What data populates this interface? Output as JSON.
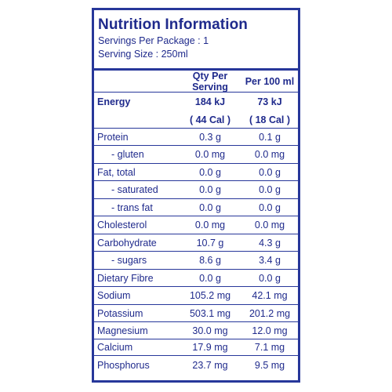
{
  "panel": {
    "title": "Nutrition Information",
    "servings_per_package": "Servings Per Package : 1",
    "serving_size": "Serving Size : 250ml"
  },
  "columns": {
    "qty_per_serving": "Qty Per Serving",
    "per_100ml": "Per 100 ml"
  },
  "energy": {
    "label": "Energy",
    "kj_serving": "184 kJ",
    "kj_100ml": "73 kJ",
    "cal_serving": "( 44 Cal )",
    "cal_100ml": "( 18 Cal )"
  },
  "rows": [
    {
      "label": "Protein",
      "serving": "0.3 g",
      "per100": "0.1 g"
    },
    {
      "label": "- gluten",
      "serving": "0.0 mg",
      "per100": "0.0 mg"
    },
    {
      "label": "Fat, total",
      "serving": "0.0 g",
      "per100": "0.0 g"
    },
    {
      "label": "- saturated",
      "serving": "0.0 g",
      "per100": "0.0 g"
    },
    {
      "label": "- trans fat",
      "serving": "0.0 g",
      "per100": "0.0 g"
    },
    {
      "label": "Cholesterol",
      "serving": "0.0 mg",
      "per100": "0.0 mg"
    },
    {
      "label": "Carbohydrate",
      "serving": "10.7 g",
      "per100": "4.3 g"
    },
    {
      "label": "- sugars",
      "serving": "8.6 g",
      "per100": "3.4 g"
    },
    {
      "label": "Dietary Fibre",
      "serving": "0.0 g",
      "per100": "0.0 g"
    },
    {
      "label": "Sodium",
      "serving": "105.2 mg",
      "per100": "42.1 mg"
    },
    {
      "label": "Potassium",
      "serving": "503.1 mg",
      "per100": "201.2 mg"
    },
    {
      "label": "Magnesium",
      "serving": "30.0 mg",
      "per100": "12.0 mg"
    },
    {
      "label": "Calcium",
      "serving": "17.9 mg",
      "per100": "7.1 mg"
    },
    {
      "label": "Phosphorus",
      "serving": "23.7 mg",
      "per100": "9.5 mg"
    }
  ],
  "colors": {
    "ink": "#1f2a8c",
    "border": "#27379a",
    "background": "#ffffff"
  }
}
